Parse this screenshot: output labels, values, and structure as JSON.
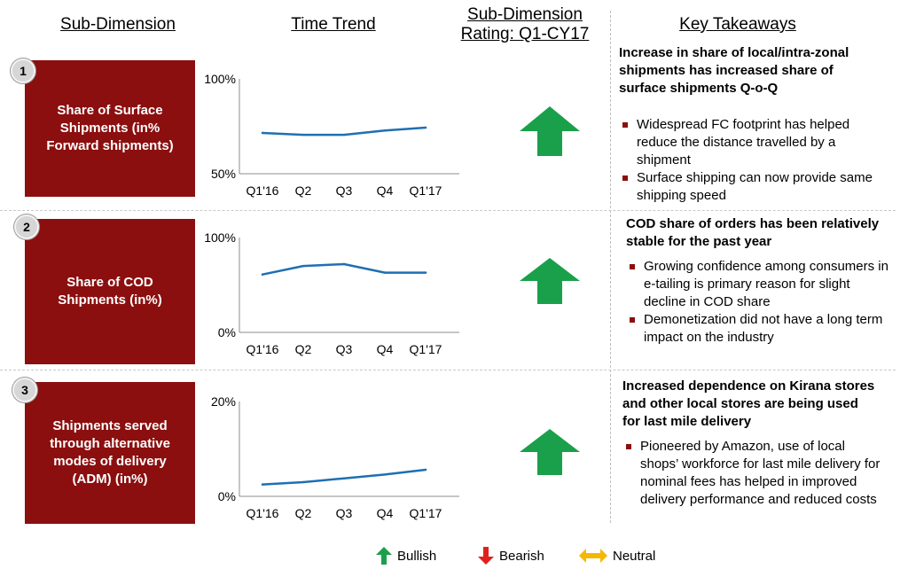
{
  "headers": {
    "sub_dimension": "Sub-Dimension",
    "time_trend": "Time Trend",
    "rating_line1": "Sub-Dimension",
    "rating_line2": "Rating: Q1-CY17",
    "key_takeaways": "Key Takeaways"
  },
  "rows": [
    {
      "number": "1",
      "dimension": "Share of Surface Shipments (in% Forward shipments)",
      "rating": "Bullish",
      "takeaway_title": "Increase in share of local/intra-zonal shipments has increased share of surface shipments Q-o-Q",
      "bullets": [
        "Widespread FC footprint has helped reduce the distance travelled by a shipment",
        "Surface shipping can now provide same shipping speed"
      ]
    },
    {
      "number": "2",
      "dimension": "Share of COD Shipments (in%)",
      "rating": "Bullish",
      "takeaway_title": "COD share of orders has been relatively stable for the past year",
      "bullets": [
        "Growing confidence among consumers in e-tailing is primary reason for slight decline in COD share",
        "Demonetization did not have a long term impact on the industry"
      ]
    },
    {
      "number": "3",
      "dimension": "Shipments served through alternative modes of delivery (ADM) (in%)",
      "rating": "Bullish",
      "takeaway_title": "Increased dependence on Kirana stores and other local stores are being used for last mile delivery",
      "bullets": [
        "Pioneered by Amazon, use of local shops’ workforce for last mile delivery for nominal fees has helped in improved delivery performance and reduced costs"
      ]
    }
  ],
  "chart_data": [
    {
      "type": "line",
      "categories": [
        "Q1'16",
        "Q2",
        "Q3",
        "Q4",
        "Q1'17"
      ],
      "values": [
        71.5,
        70.5,
        70.5,
        72.8,
        74.3
      ],
      "ylim": [
        50,
        100
      ],
      "yticks": [
        "50%",
        "100%"
      ],
      "color": "#1f6fb2"
    },
    {
      "type": "line",
      "categories": [
        "Q1'16",
        "Q2",
        "Q3",
        "Q4",
        "Q1'17"
      ],
      "values": [
        61,
        70,
        72,
        63,
        63
      ],
      "ylim": [
        0,
        100
      ],
      "yticks": [
        "0%",
        "100%"
      ],
      "color": "#1f6fb2"
    },
    {
      "type": "line",
      "categories": [
        "Q1'16",
        "Q2",
        "Q3",
        "Q4",
        "Q1'17"
      ],
      "values": [
        2.5,
        3.0,
        3.8,
        4.6,
        5.6
      ],
      "ylim": [
        0,
        20
      ],
      "yticks": [
        "0%",
        "20%"
      ],
      "color": "#1f6fb2"
    }
  ],
  "legend": [
    {
      "label": "Bullish",
      "color": "#1aa04a",
      "icon": "arrow-up-icon"
    },
    {
      "label": "Bearish",
      "color": "#e0201b",
      "icon": "arrow-down-icon"
    },
    {
      "label": "Neutral",
      "color": "#f5b800",
      "icon": "arrow-left-right-icon"
    }
  ],
  "colors": {
    "dimension_box": "#8b0f0f",
    "bullet": "#8b0f0f",
    "arrow_bullish": "#1aa04a"
  }
}
